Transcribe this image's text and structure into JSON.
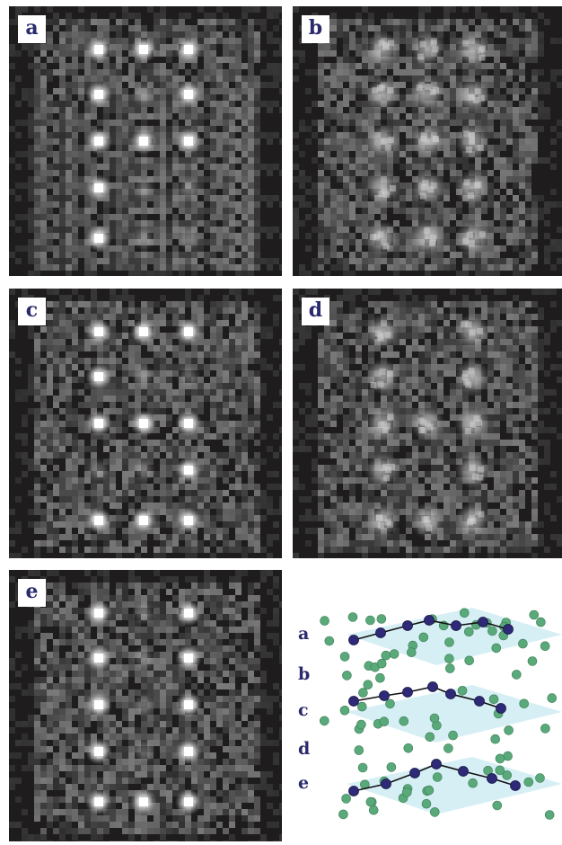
{
  "panels": [
    {
      "id": "a",
      "label": "a",
      "bright": [
        [
          0,
          0
        ],
        [
          1,
          0
        ],
        [
          2,
          0
        ],
        [
          0,
          1
        ],
        [
          2,
          1
        ],
        [
          0,
          2
        ],
        [
          1,
          2
        ],
        [
          2,
          2
        ],
        [
          0,
          3
        ],
        [
          0,
          4
        ]
      ],
      "dim": [
        [
          2,
          3
        ],
        [
          1,
          4
        ],
        [
          2,
          4
        ],
        [
          1,
          1
        ],
        [
          1,
          3
        ]
      ]
    },
    {
      "id": "b",
      "label": "b",
      "bright": [],
      "diffuse": true,
      "dim": [
        [
          0,
          0
        ],
        [
          1,
          0
        ],
        [
          2,
          0
        ],
        [
          0,
          1
        ],
        [
          2,
          1
        ],
        [
          0,
          2
        ],
        [
          1,
          2
        ],
        [
          2,
          2
        ],
        [
          0,
          3
        ],
        [
          2,
          3
        ],
        [
          0,
          4
        ],
        [
          1,
          4
        ],
        [
          2,
          4
        ],
        [
          1,
          1
        ],
        [
          1,
          3
        ]
      ]
    },
    {
      "id": "c",
      "label": "c",
      "bright": [
        [
          0,
          0
        ],
        [
          1,
          0
        ],
        [
          2,
          0
        ],
        [
          0,
          1
        ],
        [
          0,
          2
        ],
        [
          1,
          2
        ],
        [
          2,
          2
        ],
        [
          2,
          3
        ],
        [
          0,
          4
        ],
        [
          1,
          4
        ],
        [
          2,
          4
        ]
      ],
      "dim": [
        [
          2,
          1
        ],
        [
          0,
          3
        ],
        [
          1,
          1
        ],
        [
          1,
          3
        ]
      ]
    },
    {
      "id": "d",
      "label": "d",
      "bright": [],
      "diffuse": true,
      "dim": [
        [
          0,
          0
        ],
        [
          2,
          0
        ],
        [
          0,
          1
        ],
        [
          2,
          1
        ],
        [
          0,
          2
        ],
        [
          1,
          2
        ],
        [
          2,
          2
        ],
        [
          0,
          3
        ],
        [
          2,
          3
        ],
        [
          0,
          4
        ],
        [
          1,
          4
        ],
        [
          2,
          4
        ]
      ]
    },
    {
      "id": "e",
      "label": "e",
      "bright": [
        [
          0,
          0
        ],
        [
          2,
          0
        ],
        [
          0,
          1
        ],
        [
          2,
          1
        ],
        [
          0,
          2
        ],
        [
          2,
          2
        ],
        [
          0,
          3
        ],
        [
          2,
          3
        ],
        [
          0,
          4
        ],
        [
          1,
          4
        ],
        [
          2,
          4
        ]
      ],
      "dim": [
        [
          1,
          0
        ],
        [
          1,
          1
        ],
        [
          1,
          2
        ],
        [
          1,
          3
        ]
      ]
    }
  ],
  "diagram": {
    "plane_labels": [
      "a",
      "b",
      "c",
      "d",
      "e"
    ],
    "colors": {
      "plane": "#c8e9f2",
      "host_atom": "#5aa97a",
      "marked_atom": "#2e2a78",
      "bond": "#111111"
    }
  }
}
